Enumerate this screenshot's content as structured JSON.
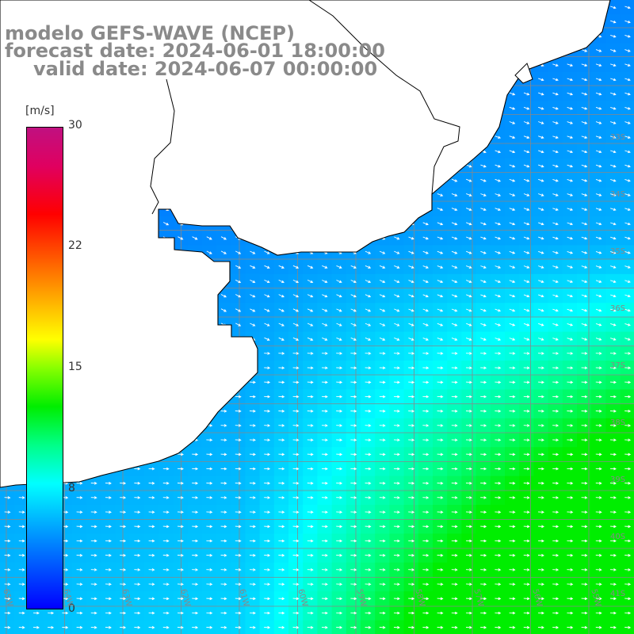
{
  "title": {
    "line1": "modelo GEFS-WAVE (NCEP)",
    "line2": "forecast date: 2024-06-01 18:00:00",
    "line3": "valid date: 2024-06-07 00:00:00"
  },
  "colorbar": {
    "unit": "[m/s]",
    "ticks": [
      "30",
      "22",
      "15",
      "8",
      "0"
    ],
    "tick_values": [
      30,
      22,
      15,
      8,
      0
    ],
    "min": 0,
    "max": 30,
    "colors": [
      "#0000ff",
      "#0088ff",
      "#00ffff",
      "#00ff88",
      "#00ee00",
      "#ffff00",
      "#ff8800",
      "#ff0000",
      "#c01080"
    ]
  },
  "map": {
    "variable": "wind speed and direction",
    "grid": true,
    "lon_labels": [
      "65W",
      "64W",
      "63W",
      "62W",
      "61W",
      "60W",
      "59W",
      "58W",
      "57W",
      "56W",
      "55W"
    ],
    "lat_labels": [
      "33S",
      "34S",
      "35S",
      "36S",
      "37S",
      "38S",
      "39S",
      "40S",
      "41S"
    ],
    "colors": {
      "land": "#ffffff",
      "coast": "#000000",
      "grid": "#888888",
      "arrow": "#ffffff",
      "title": "#8a8a8a"
    }
  }
}
